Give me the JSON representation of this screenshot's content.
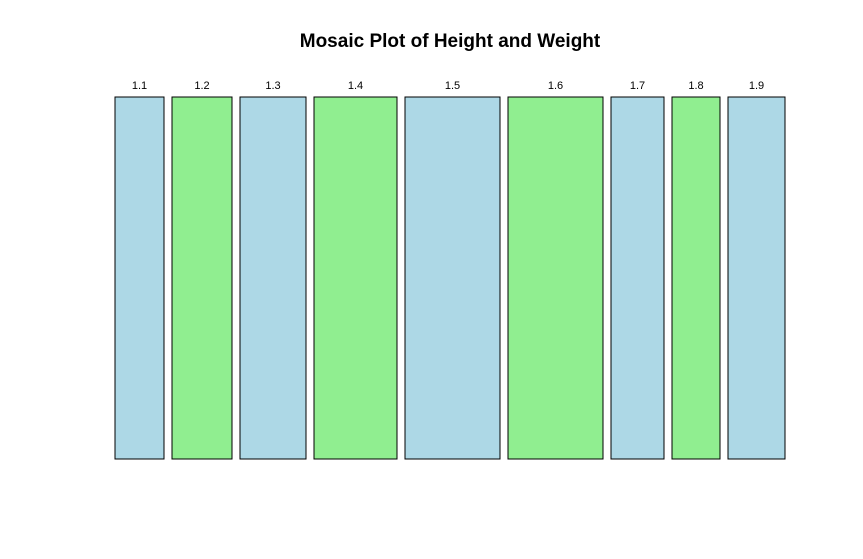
{
  "chart_data": {
    "type": "mosaic",
    "title": "Mosaic Plot of Height and Weight",
    "categories": [
      "1.1",
      "1.2",
      "1.3",
      "1.4",
      "1.5",
      "1.6",
      "1.7",
      "1.8",
      "1.9"
    ],
    "values": [
      49,
      60,
      66,
      83,
      95,
      95,
      53,
      48,
      57
    ],
    "colors": [
      "#add8e6",
      "#90ee90",
      "#add8e6",
      "#90ee90",
      "#add8e6",
      "#90ee90",
      "#add8e6",
      "#90ee90",
      "#add8e6"
    ],
    "legend": "none",
    "grid": false
  }
}
